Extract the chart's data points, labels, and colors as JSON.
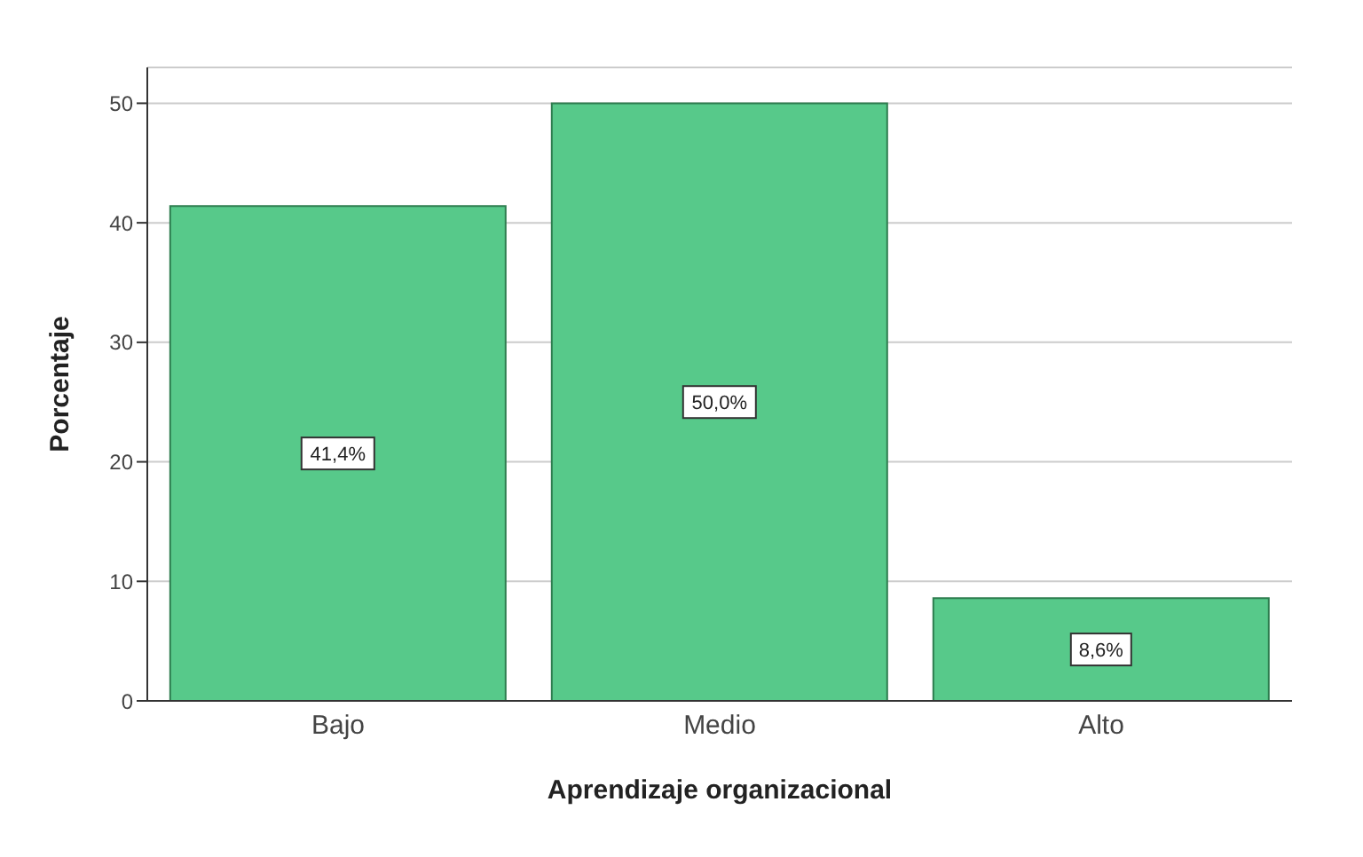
{
  "chart_data": {
    "type": "bar",
    "xlabel": "Aprendizaje organizacional",
    "ylabel": "Porcentaje",
    "categories": [
      "Bajo",
      "Medio",
      "Alto"
    ],
    "values": [
      41.4,
      50.0,
      8.6
    ],
    "color": "#57c98a",
    "value_labels": [
      "41,4%",
      "50,0%",
      "8,6%"
    ],
    "ylim": [
      0,
      53
    ],
    "yticks": [
      0,
      10,
      20,
      30,
      40,
      50
    ],
    "grid": "y"
  }
}
